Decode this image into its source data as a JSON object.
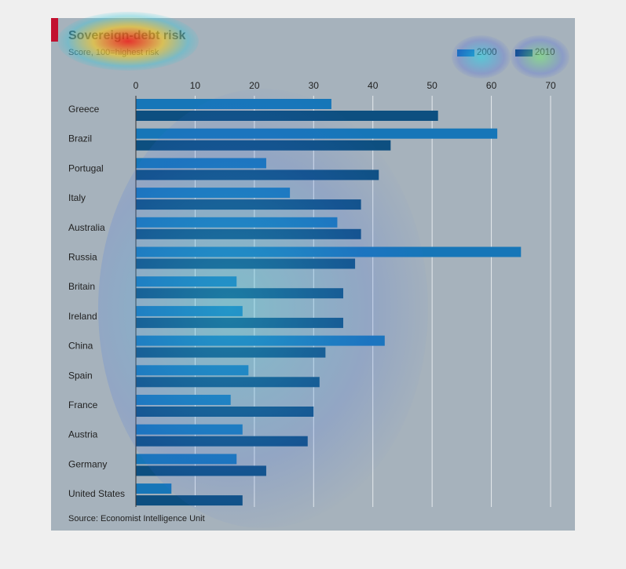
{
  "chart_data": {
    "type": "bar",
    "orientation": "horizontal",
    "title": "Sovereign-debt risk",
    "subtitle": "Score, 100=highest risk",
    "categories": [
      "Greece",
      "Brazil",
      "Portugal",
      "Italy",
      "Australia",
      "Russia",
      "Britain",
      "Ireland",
      "China",
      "Spain",
      "France",
      "Austria",
      "Germany",
      "United States"
    ],
    "series": [
      {
        "name": "2000",
        "values": [
          33,
          61,
          22,
          26,
          34,
          65,
          17,
          18,
          42,
          19,
          16,
          18,
          17,
          6
        ]
      },
      {
        "name": "2010",
        "values": [
          51,
          43,
          41,
          38,
          38,
          37,
          35,
          35,
          32,
          31,
          30,
          29,
          22,
          18
        ]
      }
    ],
    "xlim": [
      0,
      70
    ],
    "xticks": [
      0,
      10,
      20,
      30,
      40,
      50,
      60,
      70
    ],
    "grid": true,
    "legend_position": "top-right",
    "colors": {
      "2000": "#1676b8",
      "2010": "#0d4f80"
    },
    "source": "Source: Economist Intelligence Unit"
  }
}
